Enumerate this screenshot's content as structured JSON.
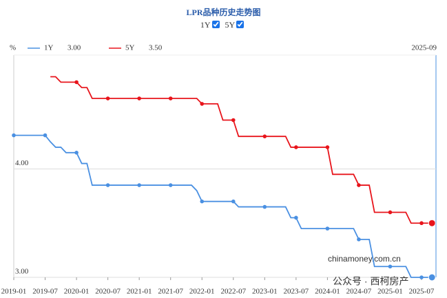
{
  "chart_data": {
    "type": "line",
    "title": "LPR品种历史走势图",
    "y_unit": "%",
    "latest_date": "2025-09",
    "watermarks": [
      "chinamoney.com.cn",
      "公众号 · 西柯房产"
    ],
    "x": [
      "2019-01",
      "2019-02",
      "2019-03",
      "2019-04",
      "2019-05",
      "2019-06",
      "2019-07",
      "2019-08",
      "2019-09",
      "2019-10",
      "2019-11",
      "2019-12",
      "2020-01",
      "2020-02",
      "2020-03",
      "2020-04",
      "2020-05",
      "2020-06",
      "2020-07",
      "2020-08",
      "2020-09",
      "2020-10",
      "2020-11",
      "2020-12",
      "2021-01",
      "2021-02",
      "2021-03",
      "2021-04",
      "2021-05",
      "2021-06",
      "2021-07",
      "2021-08",
      "2021-09",
      "2021-10",
      "2021-11",
      "2021-12",
      "2022-01",
      "2022-02",
      "2022-03",
      "2022-04",
      "2022-05",
      "2022-06",
      "2022-07",
      "2022-08",
      "2022-09",
      "2022-10",
      "2022-11",
      "2022-12",
      "2023-01",
      "2023-02",
      "2023-03",
      "2023-04",
      "2023-05",
      "2023-06",
      "2023-07",
      "2023-08",
      "2023-09",
      "2023-10",
      "2023-11",
      "2023-12",
      "2024-01",
      "2024-02",
      "2024-03",
      "2024-04",
      "2024-05",
      "2024-06",
      "2024-07",
      "2024-08",
      "2024-09",
      "2024-10",
      "2024-11",
      "2024-12",
      "2025-01",
      "2025-02",
      "2025-03",
      "2025-04",
      "2025-05",
      "2025-06",
      "2025-07",
      "2025-08",
      "2025-09"
    ],
    "series": [
      {
        "name": "1Y",
        "legend_value": "3.00",
        "color": "#4a90e2",
        "values": [
          4.31,
          4.31,
          4.31,
          4.31,
          4.31,
          4.31,
          4.31,
          4.25,
          4.2,
          4.2,
          4.15,
          4.15,
          4.15,
          4.05,
          4.05,
          3.85,
          3.85,
          3.85,
          3.85,
          3.85,
          3.85,
          3.85,
          3.85,
          3.85,
          3.85,
          3.85,
          3.85,
          3.85,
          3.85,
          3.85,
          3.85,
          3.85,
          3.85,
          3.85,
          3.85,
          3.8,
          3.7,
          3.7,
          3.7,
          3.7,
          3.7,
          3.7,
          3.7,
          3.65,
          3.65,
          3.65,
          3.65,
          3.65,
          3.65,
          3.65,
          3.65,
          3.65,
          3.65,
          3.55,
          3.55,
          3.45,
          3.45,
          3.45,
          3.45,
          3.45,
          3.45,
          3.45,
          3.45,
          3.45,
          3.45,
          3.45,
          3.35,
          3.35,
          3.35,
          3.1,
          3.1,
          3.1,
          3.1,
          3.1,
          3.1,
          3.1,
          3.0,
          3.0,
          3.0,
          3.0,
          3.0
        ]
      },
      {
        "name": "5Y",
        "legend_value": "3.50",
        "color": "#e8141b",
        "values": [
          null,
          null,
          null,
          null,
          null,
          null,
          null,
          4.85,
          4.85,
          4.8,
          4.8,
          4.8,
          4.8,
          4.75,
          4.75,
          4.65,
          4.65,
          4.65,
          4.65,
          4.65,
          4.65,
          4.65,
          4.65,
          4.65,
          4.65,
          4.65,
          4.65,
          4.65,
          4.65,
          4.65,
          4.65,
          4.65,
          4.65,
          4.65,
          4.65,
          4.65,
          4.6,
          4.6,
          4.6,
          4.6,
          4.45,
          4.45,
          4.45,
          4.3,
          4.3,
          4.3,
          4.3,
          4.3,
          4.3,
          4.3,
          4.3,
          4.3,
          4.3,
          4.2,
          4.2,
          4.2,
          4.2,
          4.2,
          4.2,
          4.2,
          4.2,
          3.95,
          3.95,
          3.95,
          3.95,
          3.95,
          3.85,
          3.85,
          3.85,
          3.6,
          3.6,
          3.6,
          3.6,
          3.6,
          3.6,
          3.6,
          3.5,
          3.5,
          3.5,
          3.5,
          3.5
        ]
      }
    ],
    "xticks": [
      "2019-01",
      "2019-07",
      "2020-01",
      "2020-07",
      "2021-01",
      "2021-07",
      "2022-01",
      "2022-07",
      "2023-01",
      "2023-07",
      "2024-01",
      "2024-07",
      "2025-01",
      "2025-07"
    ],
    "ylim": [
      3.0,
      5.05
    ],
    "yticks": [
      {
        "value": 3,
        "label": "3.00"
      },
      {
        "value": 4,
        "label": "4.00"
      }
    ],
    "grid": true
  }
}
